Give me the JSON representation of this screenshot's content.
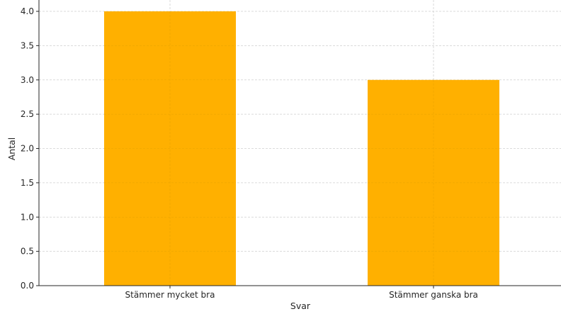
{
  "chart_data": {
    "type": "bar",
    "categories": [
      "Stämmer mycket bra",
      "Stämmer ganska bra"
    ],
    "values": [
      4,
      3
    ],
    "title": "",
    "xlabel": "Svar",
    "ylabel": "Antal",
    "ylim": [
      0,
      4.0
    ],
    "yticks": [
      "0.0",
      "0.5",
      "1.0",
      "1.5",
      "2.0",
      "2.5",
      "3.0",
      "3.5",
      "4.0"
    ],
    "grid": true,
    "bar_color": "#FFB000"
  }
}
